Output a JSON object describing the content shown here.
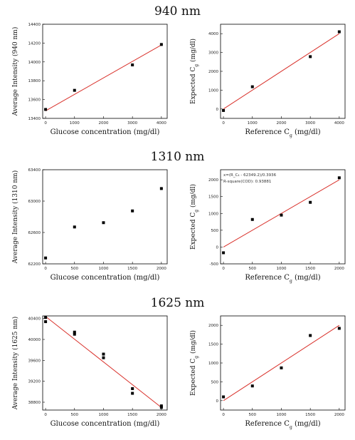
{
  "titles": [
    "940  nm",
    "1310  nm",
    "1625  nm"
  ],
  "chart_data": [
    {
      "type": "scatter",
      "xlabel": "Glucose concentration (mg/dl)",
      "ylabel": "Average Intensity (940 nm)",
      "xlim": [
        -100,
        4200
      ],
      "ylim": [
        13400,
        14400
      ],
      "xticks": [
        0,
        1000,
        2000,
        3000,
        4000
      ],
      "xtick_labels": [
        "0",
        "1000",
        "2000",
        "3000",
        "4000"
      ],
      "yticks": [
        13400,
        13600,
        13800,
        14000,
        14200,
        14400
      ],
      "ytick_labels": [
        "13400",
        "13600",
        "13800",
        "14000",
        "14200",
        "14400"
      ],
      "points": [
        [
          0,
          13495
        ],
        [
          1000,
          13698
        ],
        [
          3000,
          13968
        ],
        [
          4000,
          14185
        ]
      ],
      "fit": [
        [
          0,
          13480
        ],
        [
          4000,
          14180
        ]
      ]
    },
    {
      "type": "scatter",
      "xlabel": "Reference C",
      "xlabel_sub": "g",
      "xlabel_tail": "(mg/dl)",
      "ylabel": "Expected C",
      "ylabel_sub": "g",
      "ylabel_tail": "(mg/dl)",
      "xlim": [
        -100,
        4200
      ],
      "ylim": [
        -500,
        4500
      ],
      "xticks": [
        0,
        1000,
        2000,
        3000,
        4000
      ],
      "xtick_labels": [
        "0",
        "1000",
        "2000",
        "3000",
        "4000"
      ],
      "yticks": [
        0,
        1000,
        2000,
        3000,
        4000
      ],
      "ytick_labels": [
        "0",
        "1000",
        "2000",
        "3000",
        "4000"
      ],
      "points": [
        [
          0,
          -80
        ],
        [
          1000,
          1180
        ],
        [
          3000,
          2780
        ],
        [
          4000,
          4100
        ]
      ],
      "fit": [
        [
          0,
          0
        ],
        [
          4000,
          4000
        ]
      ]
    },
    {
      "type": "scatter",
      "xlabel": "Glucose concentration (mg/dl)",
      "ylabel": "Average Intensity (1310 nm)",
      "xlim": [
        -50,
        2100
      ],
      "ylim": [
        62200,
        63400
      ],
      "xticks": [
        0,
        500,
        1000,
        1500,
        2000
      ],
      "xtick_labels": [
        "0",
        "500",
        "1000",
        "1500",
        "2000"
      ],
      "yticks": [
        62200,
        62600,
        63000,
        63400
      ],
      "ytick_labels": [
        "62200",
        "62600",
        "63000",
        "63400"
      ],
      "points": [
        [
          0,
          62275
        ],
        [
          500,
          62670
        ],
        [
          1000,
          62725
        ],
        [
          1500,
          62875
        ],
        [
          2000,
          63160
        ]
      ],
      "fit": []
    },
    {
      "type": "scatter",
      "xlabel": "Reference C",
      "xlabel_sub": "g",
      "xlabel_tail": "(mg/dl)",
      "ylabel": "Expected C",
      "ylabel_sub": "g",
      "ylabel_tail": "(mg/dl)",
      "annotation": [
        "x=(R_C₄ - 62349.2)/0.3936",
        "R-square(COD): 0.93881"
      ],
      "xlim": [
        -50,
        2100
      ],
      "ylim": [
        -500,
        2300
      ],
      "xticks": [
        0,
        500,
        1000,
        1500,
        2000
      ],
      "xtick_labels": [
        "0",
        "500",
        "1000",
        "1500",
        "2000"
      ],
      "yticks": [
        -500,
        0,
        500,
        1000,
        1500,
        2000
      ],
      "ytick_labels": [
        "-500",
        "0",
        "500",
        "1000",
        "1500",
        "2000"
      ],
      "points": [
        [
          0,
          -170
        ],
        [
          500,
          820
        ],
        [
          1000,
          950
        ],
        [
          1500,
          1330
        ],
        [
          2000,
          2060
        ]
      ],
      "fit": [
        [
          0,
          0
        ],
        [
          2000,
          2000
        ]
      ]
    },
    {
      "type": "scatter",
      "xlabel": "Glucose concentration (mg/dl)",
      "ylabel": "Average Intensity (1625 nm)",
      "xlim": [
        -50,
        2100
      ],
      "ylim": [
        38650,
        40450
      ],
      "xticks": [
        0,
        500,
        1000,
        1500,
        2000
      ],
      "xtick_labels": [
        "0",
        "500",
        "1000",
        "1500",
        "2000"
      ],
      "yticks": [
        38800,
        39200,
        39600,
        40000,
        40400
      ],
      "ytick_labels": [
        "38800",
        "39200",
        "39600",
        "40000",
        "40400"
      ],
      "points": [
        [
          0,
          40420
        ],
        [
          0,
          40340
        ],
        [
          500,
          40140
        ],
        [
          500,
          40100
        ],
        [
          1000,
          39720
        ],
        [
          1000,
          39650
        ],
        [
          1500,
          39060
        ],
        [
          1500,
          38970
        ],
        [
          2000,
          38730
        ],
        [
          2000,
          38700
        ]
      ],
      "fit": [
        [
          0,
          40440
        ],
        [
          2000,
          38700
        ]
      ]
    },
    {
      "type": "scatter",
      "xlabel": "Reference C",
      "xlabel_sub": "g",
      "xlabel_tail": "(mg/dl)",
      "ylabel": "Expected C",
      "ylabel_sub": "g",
      "ylabel_tail": "(mg/dl)",
      "xlim": [
        -50,
        2100
      ],
      "ylim": [
        -250,
        2250
      ],
      "xticks": [
        0,
        500,
        1000,
        1500,
        2000
      ],
      "xtick_labels": [
        "0",
        "500",
        "1000",
        "1500",
        "2000"
      ],
      "yticks": [
        0,
        500,
        1000,
        1500,
        2000
      ],
      "ytick_labels": [
        "0",
        "500",
        "1000",
        "1500",
        "2000"
      ],
      "points": [
        [
          0,
          100
        ],
        [
          500,
          390
        ],
        [
          1000,
          870
        ],
        [
          1500,
          1730
        ],
        [
          2000,
          1920
        ]
      ],
      "fit": [
        [
          0,
          0
        ],
        [
          2000,
          2000
        ]
      ]
    }
  ]
}
